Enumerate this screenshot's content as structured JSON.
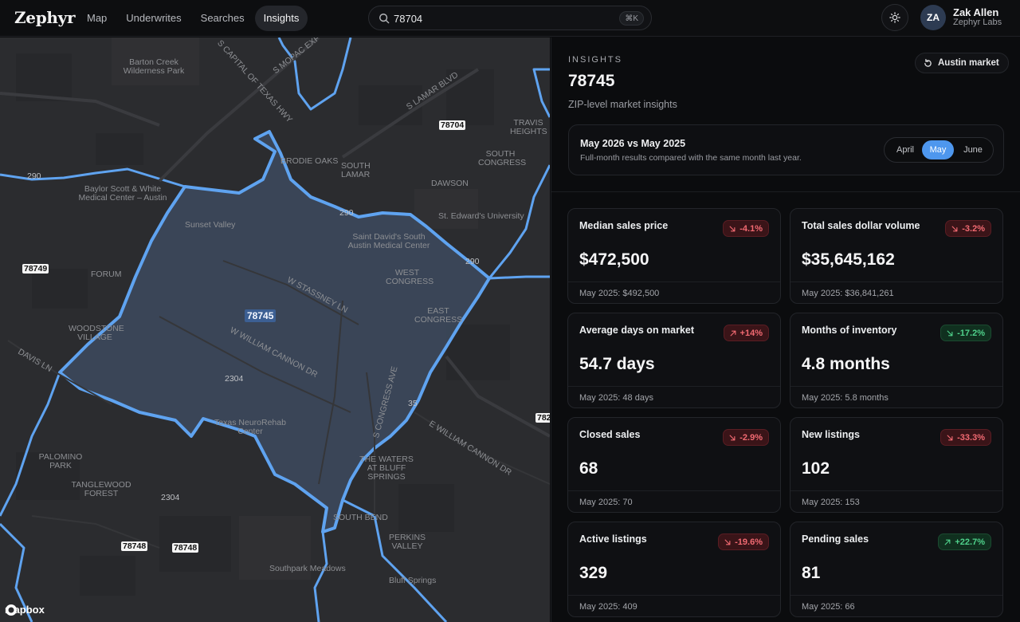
{
  "header": {
    "brand": "Zephyr",
    "nav": [
      {
        "label": "Map",
        "active": false
      },
      {
        "label": "Underwrites",
        "active": false
      },
      {
        "label": "Searches",
        "active": false
      },
      {
        "label": "Insights",
        "active": true
      }
    ],
    "search": {
      "value": "78704",
      "shortcut": "⌘K"
    },
    "user": {
      "initials": "ZA",
      "name": "Zak Allen",
      "org": "Zephyr Labs"
    }
  },
  "map": {
    "selected_zip": "78745",
    "zip_labels": [
      "78704",
      "78749",
      "78748",
      "78748",
      "782"
    ],
    "place_labels": [
      "Barton Creek Wilderness Park",
      "Baylor Scott & White Medical Center – Austin",
      "Sunset Valley",
      "FORUM",
      "WOODSTONE VILLAGE",
      "DAVIS LN",
      "Saint David's South Austin Medical Center",
      "WEST CONGRESS",
      "EAST CONGRESS",
      "W STASSNEY LN",
      "W WILLIAM CANNON DR",
      "E WILLIAM CANNON DR",
      "S CONGRESS AVE",
      "Texas NeuroRehab Center",
      "PALOMINO PARK",
      "TANGLEWOOD FOREST",
      "THE WATERS AT BLUFF SPRINGS",
      "SOUTH BEND",
      "PERKINS VALLEY",
      "Southpark Meadows",
      "Bluff Springs",
      "BRODIE OAKS",
      "SOUTH LAMAR",
      "DAWSON",
      "SOUTH CONGRESS",
      "TRAVIS HEIGHTS",
      "St. Edward's University",
      "S LAMAR BLVD",
      "S CAPITAL OF TEXAS HWY",
      "S MOPAC EXPY",
      "290",
      "290",
      "290",
      "2304",
      "2304",
      "35"
    ],
    "attribution": "mapbox",
    "colors": {
      "boundary": "#5fa3f0",
      "fill": "#3d4a5e",
      "land": "#2b2c2f"
    }
  },
  "panel": {
    "eyebrow": "INSIGHTS",
    "zip": "78745",
    "subtitle": "ZIP-level market insights",
    "market_button": "Austin market",
    "compare": {
      "title": "May 2026 vs May 2025",
      "desc": "Full-month results compared with the same month last year.",
      "months": [
        "April",
        "May",
        "June"
      ],
      "active_month": "May"
    },
    "cards": [
      {
        "label": "Median sales price",
        "value": "$472,500",
        "change": "-4.1%",
        "trend": "down",
        "tone": "bad",
        "prior": "May 2025: $492,500"
      },
      {
        "label": "Total sales dollar volume",
        "value": "$35,645,162",
        "change": "-3.2%",
        "trend": "down",
        "tone": "bad",
        "prior": "May 2025: $36,841,261"
      },
      {
        "label": "Average days on market",
        "value": "54.7 days",
        "change": "+14%",
        "trend": "up",
        "tone": "bad",
        "prior": "May 2025: 48 days"
      },
      {
        "label": "Months of inventory",
        "value": "4.8 months",
        "change": "-17.2%",
        "trend": "down",
        "tone": "good",
        "prior": "May 2025: 5.8 months"
      },
      {
        "label": "Closed sales",
        "value": "68",
        "change": "-2.9%",
        "trend": "down",
        "tone": "bad",
        "prior": "May 2025: 70"
      },
      {
        "label": "New listings",
        "value": "102",
        "change": "-33.3%",
        "trend": "down",
        "tone": "bad",
        "prior": "May 2025: 153"
      },
      {
        "label": "Active listings",
        "value": "329",
        "change": "-19.6%",
        "trend": "down",
        "tone": "bad",
        "prior": "May 2025: 409"
      },
      {
        "label": "Pending sales",
        "value": "81",
        "change": "+22.7%",
        "trend": "up",
        "tone": "good",
        "prior": "May 2025: 66"
      }
    ]
  }
}
